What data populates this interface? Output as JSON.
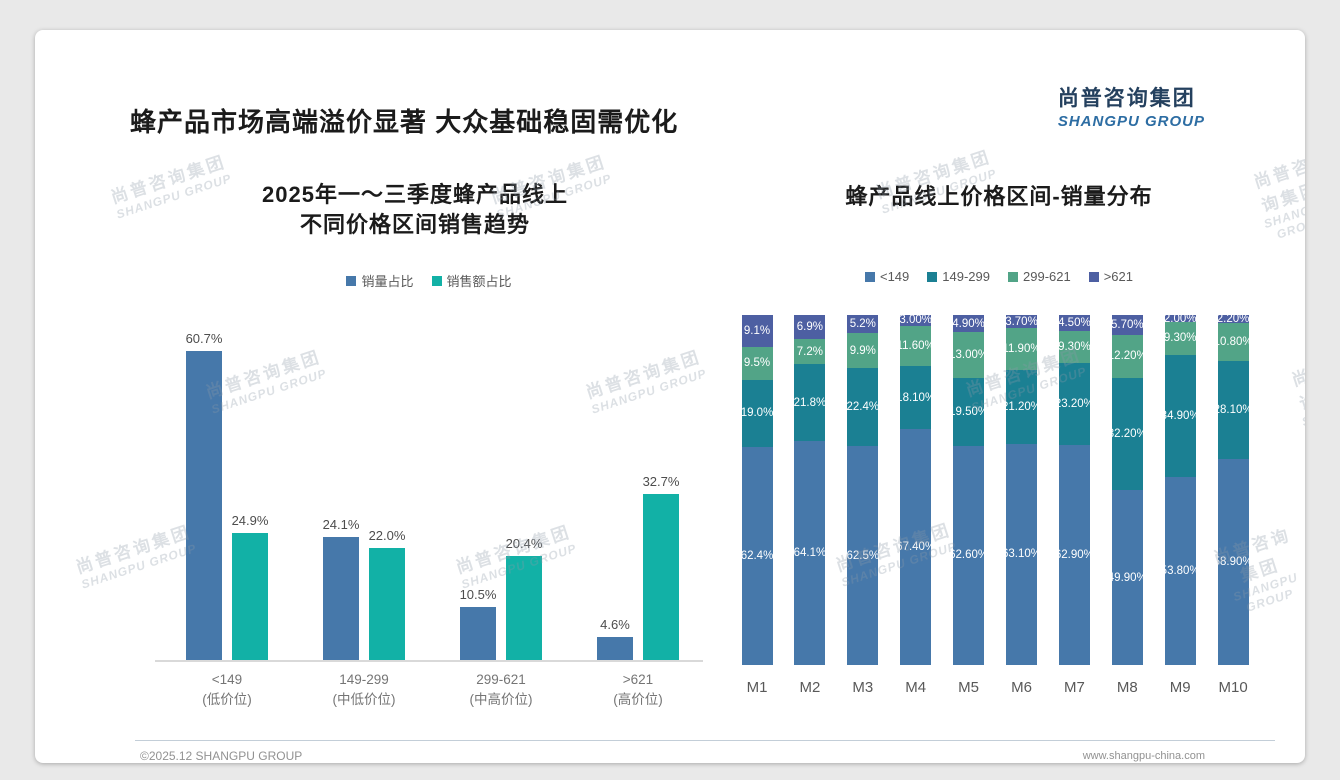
{
  "slide": {
    "title": "蜂产品市场高端溢价显著 大众基础稳固需优化",
    "logo": {
      "cn": "尚普咨询集团",
      "en": "SHANGPU GROUP"
    },
    "watermark": {
      "cn": "尚普咨询集团",
      "en": "SHANGPU GROUP"
    },
    "footer": {
      "left": "©2025.12 SHANGPU GROUP",
      "right": "www.shangpu-china.com"
    }
  },
  "colors": {
    "steel_blue": "#4678aa",
    "bright_teal": "#12b1a6",
    "dark_teal": "#1b8093",
    "green": "#52a487",
    "indigo": "#4d5fa2",
    "title_text": "#1b1b1b",
    "label_text": "#4d4d4d",
    "footer_text": "#929292"
  },
  "chart_data": [
    {
      "type": "bar",
      "title": "2025年一～三季度蜂产品线上 不同价格区间销售趋势",
      "title_lines": [
        "2025年一～三季度蜂产品线上",
        "不同价格区间销售趋势"
      ],
      "categories": [
        "<149",
        "149-299",
        "299-621",
        ">621"
      ],
      "category_sublabels": [
        "(低价位)",
        "(中低价位)",
        "(中高价位)",
        "(高价位)"
      ],
      "series": [
        {
          "name": "销量占比",
          "color": "#4678aa",
          "values": [
            60.7,
            24.1,
            10.5,
            4.6
          ],
          "labels": [
            "60.7%",
            "24.1%",
            "10.5%",
            "4.6%"
          ]
        },
        {
          "name": "销售额占比",
          "color": "#12b1a6",
          "values": [
            24.9,
            22.0,
            20.4,
            32.7
          ],
          "labels": [
            "24.9%",
            "22.0%",
            "20.4%",
            "32.7%"
          ]
        }
      ],
      "ylim": [
        0,
        65
      ],
      "grid": false,
      "legend_position": "top"
    },
    {
      "type": "stacked-bar-100",
      "title": "蜂产品线上价格区间-销量分布",
      "categories": [
        "M1",
        "M2",
        "M3",
        "M4",
        "M5",
        "M6",
        "M7",
        "M8",
        "M9",
        "M10"
      ],
      "stack_order": "bottom-to-top",
      "series": [
        {
          "name": "<149",
          "color": "#4678aa",
          "values": [
            62.4,
            64.1,
            62.5,
            67.4,
            62.6,
            63.1,
            62.9,
            49.9,
            53.8,
            58.9
          ],
          "labels": [
            "62.4%",
            "64.1%",
            "62.5%",
            "67.40%",
            "62.60%",
            "63.10%",
            "62.90%",
            "49.90%",
            "53.80%",
            "58.90%"
          ]
        },
        {
          "name": "149-299",
          "color": "#1b8093",
          "values": [
            19.0,
            21.8,
            22.4,
            18.1,
            19.5,
            21.2,
            23.2,
            32.2,
            34.9,
            28.1
          ],
          "labels": [
            "19.0%",
            "21.8%",
            "22.4%",
            "18.10%",
            "19.50%",
            "21.20%",
            "23.20%",
            "32.20%",
            "34.90%",
            "28.10%"
          ]
        },
        {
          "name": "299-621",
          "color": "#52a487",
          "values": [
            9.5,
            7.2,
            9.9,
            11.6,
            13.0,
            11.9,
            9.3,
            12.2,
            9.3,
            10.8
          ],
          "labels": [
            "9.5%",
            "7.2%",
            "9.9%",
            "11.60%",
            "13.00%",
            "11.90%",
            "9.30%",
            "12.20%",
            "9.30%",
            "10.80%"
          ]
        },
        {
          "name": ">621",
          "color": "#4d5fa2",
          "values": [
            9.1,
            6.9,
            5.2,
            3.0,
            4.9,
            3.7,
            4.5,
            5.7,
            2.0,
            2.2
          ],
          "labels": [
            "9.1%",
            "6.9%",
            "5.2%",
            "3.00%",
            "4.90%",
            "3.70%",
            "4.50%",
            "5.70%",
            "2.00%",
            "2.20%"
          ]
        }
      ],
      "legend_position": "top"
    }
  ]
}
